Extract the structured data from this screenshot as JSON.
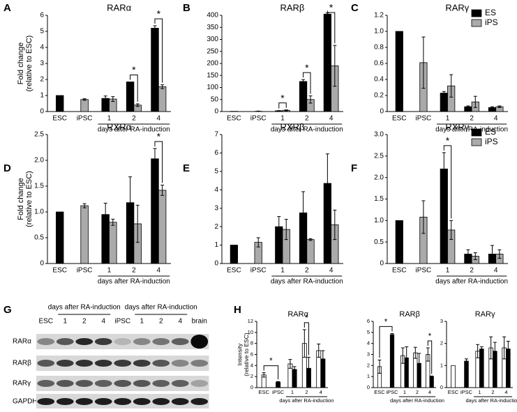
{
  "chart_data": [
    {
      "type": "bar",
      "panel": "A",
      "title": "RARα",
      "y_label": [
        "Fold change",
        "(relative to ESC)"
      ],
      "categories": [
        "ESC",
        "iPSC",
        "1",
        "2",
        "4"
      ],
      "group_label": "days after RA-induction",
      "ylim": [
        0,
        6
      ],
      "yticks": [
        0,
        1,
        2,
        3,
        4,
        5,
        6
      ],
      "series": [
        {
          "color": "#000000",
          "values": [
            1.0,
            null,
            0.82,
            1.85,
            5.2
          ],
          "errors": [
            0,
            null,
            0.15,
            0,
            0.15
          ]
        },
        {
          "color": "#aaaaaa",
          "values": [
            null,
            0.75,
            0.78,
            0.4,
            1.55
          ],
          "errors": [
            null,
            0.05,
            0.15,
            0.08,
            0.12
          ]
        }
      ],
      "significance": [
        {
          "from": 3,
          "to": 3,
          "label": "*"
        },
        {
          "from": 4,
          "to": 4,
          "label": "*"
        }
      ]
    },
    {
      "type": "bar",
      "panel": "B",
      "title": "RARβ",
      "categories": [
        "ESC",
        "iPSC",
        "1",
        "2",
        "4"
      ],
      "group_label": "days after RA-induction",
      "ylim": [
        0,
        400
      ],
      "yticks": [
        0,
        50,
        100,
        150,
        200,
        250,
        300,
        350,
        400
      ],
      "series": [
        {
          "color": "#000000",
          "values": [
            1,
            null,
            3,
            125,
            405
          ],
          "errors": [
            0,
            null,
            1,
            8,
            5
          ]
        },
        {
          "color": "#aaaaaa",
          "values": [
            null,
            1,
            5,
            50,
            190
          ],
          "errors": [
            null,
            1,
            2,
            15,
            85
          ]
        }
      ],
      "significance": [
        {
          "from": 2,
          "to": 2,
          "label": "*"
        },
        {
          "from": 3,
          "to": 3,
          "label": "*"
        },
        {
          "from": 4,
          "to": 4,
          "label": "*"
        }
      ]
    },
    {
      "type": "bar",
      "panel": "C",
      "title": "RARγ",
      "legend": true,
      "categories": [
        "ESC",
        "iPSC",
        "1",
        "2",
        "4"
      ],
      "group_label": "days after RA-induction",
      "ylim": [
        0,
        1.2
      ],
      "yticks": [
        0,
        0.2,
        0.4,
        0.6,
        0.8,
        {
          "value": 1,
          "label": "1.0"
        },
        1.2
      ],
      "series": [
        {
          "name": "ES",
          "color": "#000000",
          "values": [
            1.0,
            null,
            0.23,
            0.06,
            0.05
          ],
          "errors": [
            0,
            null,
            0.02,
            0.01,
            0.01
          ]
        },
        {
          "name": "iPS",
          "color": "#aaaaaa",
          "values": [
            null,
            0.61,
            0.32,
            0.12,
            0.06
          ],
          "errors": [
            null,
            0.32,
            0.14,
            0.07,
            0.01
          ]
        }
      ],
      "significance": []
    },
    {
      "type": "bar",
      "panel": "D",
      "title": "RXRα",
      "y_label": [
        "Fold change",
        "(relative to ESC)"
      ],
      "categories": [
        "ESC",
        "iPSC",
        "1",
        "2",
        "4"
      ],
      "group_label": "days after RA-induction",
      "ylim": [
        0,
        2.5
      ],
      "yticks": [
        0,
        0.5,
        {
          "value": 1,
          "label": "1.0"
        },
        1.5,
        {
          "value": 2,
          "label": "2.0"
        },
        2.5
      ],
      "series": [
        {
          "color": "#000000",
          "values": [
            1.0,
            null,
            0.95,
            1.18,
            2.03
          ],
          "errors": [
            0,
            null,
            0.22,
            0.5,
            0.2
          ]
        },
        {
          "color": "#aaaaaa",
          "values": [
            null,
            1.12,
            0.8,
            0.77,
            1.42
          ],
          "errors": [
            null,
            0.04,
            0.06,
            0.36,
            0.1
          ]
        }
      ],
      "significance": [
        {
          "from": 4,
          "to": 4,
          "label": "*"
        }
      ]
    },
    {
      "type": "bar",
      "panel": "E",
      "title": "RXRβ",
      "categories": [
        "ESC",
        "iPSC",
        "1",
        "2",
        "4"
      ],
      "group_label": "days after RA-induction",
      "ylim": [
        0,
        7
      ],
      "yticks": [
        0,
        1,
        2,
        3,
        4,
        5,
        6,
        7
      ],
      "series": [
        {
          "color": "#000000",
          "values": [
            1.0,
            null,
            2.0,
            2.75,
            4.35
          ],
          "errors": [
            0,
            null,
            0.55,
            1.15,
            1.6
          ]
        },
        {
          "color": "#aaaaaa",
          "values": [
            null,
            1.15,
            1.85,
            1.3,
            2.1
          ],
          "errors": [
            null,
            0.25,
            0.55,
            0.05,
            0.8
          ]
        }
      ],
      "significance": []
    },
    {
      "type": "bar",
      "panel": "F",
      "title": "RXRγ",
      "legend": true,
      "categories": [
        "ESC",
        "iPSC",
        "1",
        "2",
        "4"
      ],
      "group_label": "days after RA-induction",
      "ylim": [
        0,
        3
      ],
      "yticks": [
        0,
        0.5,
        {
          "value": 1,
          "label": "1.0"
        },
        1.5,
        {
          "value": 2,
          "label": "2.0"
        },
        2.5,
        {
          "value": 3,
          "label": "3.0"
        }
      ],
      "series": [
        {
          "name": "ES",
          "color": "#000000",
          "values": [
            1.0,
            null,
            2.2,
            0.22,
            0.22
          ],
          "errors": [
            0,
            null,
            0.38,
            0.1,
            0.2
          ]
        },
        {
          "name": "iPS",
          "color": "#aaaaaa",
          "values": [
            null,
            1.08,
            0.78,
            0.17,
            0.22
          ],
          "errors": [
            null,
            0.38,
            0.22,
            0.08,
            0.1
          ]
        }
      ],
      "significance": [
        {
          "from": 2,
          "to": 2,
          "label": "*"
        }
      ]
    },
    {
      "type": "bar",
      "panel": "H",
      "title": "RARα",
      "y_label": [
        "Intensity",
        "(relative to ESC)"
      ],
      "categories": [
        "ESC",
        "iPSC",
        "1",
        "2",
        "4"
      ],
      "group_label": "days after RA-induction",
      "ylim": [
        0,
        12
      ],
      "yticks": [
        0,
        2,
        4,
        6,
        8,
        10,
        12
      ],
      "series": [
        {
          "color": "#ffffff",
          "values": [
            2.3,
            null,
            4.3,
            8.0,
            6.7
          ],
          "errors": [
            0.4,
            null,
            0.8,
            2.5,
            1.2
          ]
        },
        {
          "color": "#000000",
          "values": [
            null,
            1.0,
            3.3,
            3.5,
            5.2
          ],
          "errors": [
            null,
            0.1,
            0.5,
            2.0,
            1.5
          ]
        }
      ],
      "significance": [
        {
          "from": 0,
          "to": 1,
          "label": "*"
        },
        {
          "from": 3,
          "to": 3,
          "label": "*"
        }
      ]
    },
    {
      "type": "bar",
      "title": "RARβ",
      "categories": [
        "ESC",
        "iPSC",
        "1",
        "2",
        "4"
      ],
      "group_label": "days after RA-induction",
      "ylim": [
        0,
        6
      ],
      "yticks": [
        0,
        1,
        2,
        3,
        4,
        5,
        6
      ],
      "series": [
        {
          "color": "#ffffff",
          "values": [
            1.9,
            null,
            2.9,
            3.15,
            3.0
          ],
          "errors": [
            0.6,
            null,
            0.7,
            0.5,
            0.6
          ]
        },
        {
          "color": "#000000",
          "values": [
            null,
            4.8,
            2.7,
            2.2,
            1.0
          ],
          "errors": [
            null,
            0.1,
            1.0,
            0.9,
            0.05
          ]
        }
      ],
      "significance": [
        {
          "from": 0,
          "to": 1,
          "label": "*"
        },
        {
          "from": 4,
          "to": 4,
          "label": "*"
        }
      ]
    },
    {
      "type": "bar",
      "title": "RARγ",
      "categories": [
        "ESC",
        "iPSC",
        "1",
        "2",
        "4"
      ],
      "group_label": "days after RA-induction",
      "ylim": [
        0,
        3
      ],
      "yticks": [
        0,
        1,
        2,
        3
      ],
      "series": [
        {
          "color": "#ffffff",
          "values": [
            1.0,
            null,
            1.65,
            1.8,
            1.8
          ],
          "errors": [
            0,
            null,
            0.3,
            0.5,
            0.5
          ]
        },
        {
          "color": "#000000",
          "values": [
            null,
            1.2,
            1.75,
            1.65,
            1.75
          ],
          "errors": [
            null,
            0.1,
            0.1,
            0.4,
            0.35
          ]
        }
      ],
      "significance": []
    }
  ],
  "blot": {
    "panel": "G",
    "header_groups": [
      "days after RA-induction",
      "days after RA-induction"
    ],
    "lanes": [
      "ESC",
      "1",
      "2",
      "4",
      "iPSC",
      "1",
      "2",
      "4",
      "brain"
    ],
    "rows": [
      "RARα",
      "RARβ",
      "RARγ",
      "GAPDH"
    ]
  }
}
